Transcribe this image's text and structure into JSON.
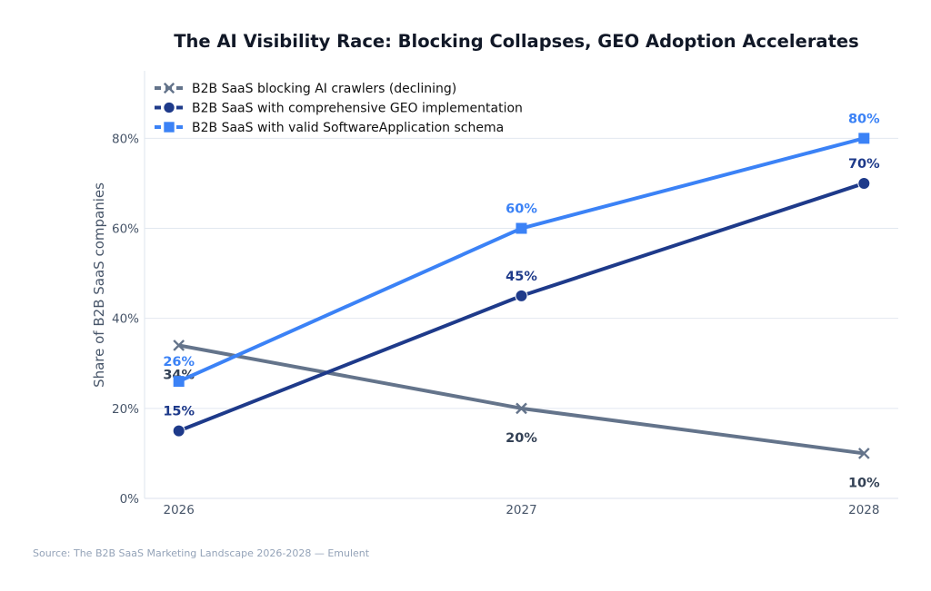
{
  "chart_data": {
    "type": "line",
    "title": "The AI Visibility Race: Blocking Collapses, GEO Adoption Accelerates",
    "xlabel": "",
    "ylabel": "Share of B2B SaaS companies",
    "x": [
      2026,
      2027,
      2028
    ],
    "x_tick_labels": [
      "2026",
      "2027",
      "2028"
    ],
    "y_ticks": [
      0,
      20,
      40,
      60,
      80
    ],
    "y_tick_labels": [
      "0%",
      "20%",
      "40%",
      "60%",
      "80%"
    ],
    "ylim": [
      0,
      95
    ],
    "xlim": [
      2025.9,
      2028.1
    ],
    "grid": "horizontal",
    "legend_position": "top-left",
    "series": [
      {
        "name": "B2B SaaS blocking AI crawlers (declining)",
        "values": [
          34,
          20,
          10
        ],
        "labels": [
          "34%",
          "20%",
          "10%"
        ],
        "color": "#64748b",
        "label_color": "#334155",
        "marker": "x",
        "label_side": "below"
      },
      {
        "name": "B2B SaaS with comprehensive GEO implementation",
        "values": [
          15,
          45,
          70
        ],
        "labels": [
          "15%",
          "45%",
          "70%"
        ],
        "color": "#1e3a8a",
        "label_color": "#1e3a8a",
        "marker": "circle",
        "label_side": "above"
      },
      {
        "name": "B2B SaaS with valid SoftwareApplication schema",
        "values": [
          26,
          60,
          80
        ],
        "labels": [
          "26%",
          "60%",
          "80%"
        ],
        "color": "#3b82f6",
        "label_color": "#3b82f6",
        "marker": "square",
        "label_side": "above"
      }
    ],
    "source": "Source: The B2B SaaS Marketing Landscape 2026-2028 — Emulent"
  }
}
